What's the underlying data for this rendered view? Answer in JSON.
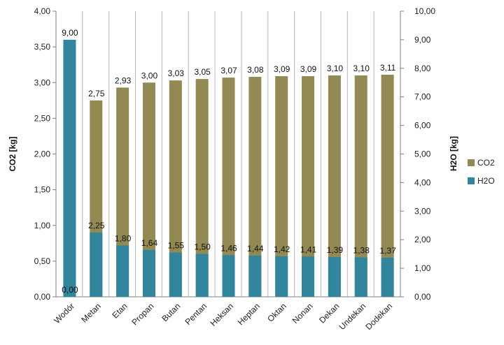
{
  "chart_data": {
    "type": "bar",
    "categories": [
      "Wodór",
      "Metan",
      "Etan",
      "Propan",
      "Butan",
      "Pentan",
      "Heksan",
      "Heptan",
      "Oktan",
      "Nonan",
      "Dekan",
      "Undekan",
      "Dodekan"
    ],
    "series": [
      {
        "name": "CO2",
        "axis": "left",
        "color": "#938953",
        "values": [
          0.0,
          2.75,
          2.93,
          3.0,
          3.03,
          3.05,
          3.07,
          3.08,
          3.09,
          3.09,
          3.1,
          3.1,
          3.11
        ],
        "labels": [
          "0,00",
          "2,75",
          "2,93",
          "3,00",
          "3,03",
          "3,05",
          "3,07",
          "3,08",
          "3,09",
          "3,09",
          "3,10",
          "3,10",
          "3,11"
        ]
      },
      {
        "name": "H2O",
        "axis": "right",
        "color": "#31859c",
        "values": [
          9.0,
          2.25,
          1.8,
          1.64,
          1.55,
          1.5,
          1.46,
          1.44,
          1.42,
          1.41,
          1.39,
          1.38,
          1.37
        ],
        "labels": [
          "9,00",
          "2,25",
          "1,80",
          "1,64",
          "1,55",
          "1,50",
          "1,46",
          "1,44",
          "1,42",
          "1,41",
          "1,39",
          "1,38",
          "1,37"
        ]
      }
    ],
    "ylabel": "CO2 [kg]",
    "y2label": "H2O [kg]",
    "ylim": [
      0,
      4
    ],
    "y2lim": [
      0,
      10
    ],
    "yticks": [
      "0,00",
      "0,50",
      "1,00",
      "1,50",
      "2,00",
      "2,50",
      "3,00",
      "3,50",
      "4,00"
    ],
    "y2ticks": [
      "0,00",
      "1,00",
      "2,00",
      "3,00",
      "4,00",
      "5,00",
      "6,00",
      "7,00",
      "8,00",
      "9,00",
      "10,00"
    ],
    "grid": "vertical category separators",
    "legend": "right",
    "legend_entries": [
      "CO2",
      "H2O"
    ]
  }
}
